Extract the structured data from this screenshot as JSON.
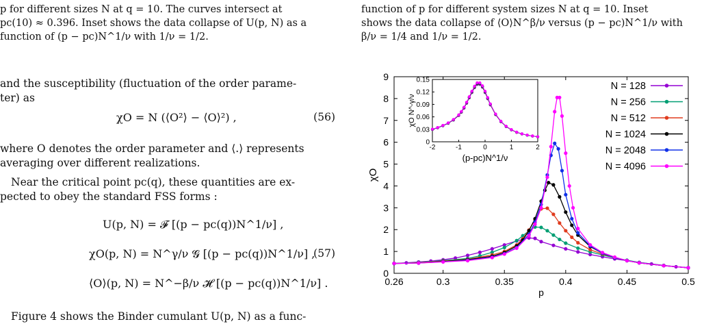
{
  "left_column": {
    "caption_lines": [
      "p for different sizes N at q = 10. The curves intersect at",
      "pc(10) ≈ 0.396. Inset shows the data collapse of U(p, N) as a",
      "function of (p − pc)N^1/ν with 1/ν = 1/2."
    ],
    "para1_lines": [
      "and the susceptibility (fluctuation of the order parame-",
      "ter) as"
    ],
    "eq56": "χO = N (⟨O²⟩ − ⟨O⟩²) ,",
    "eq56_number": "(56)",
    "para2_lines": [
      "where O denotes the order parameter and ⟨.⟩ represents",
      "averaging over different realizations."
    ],
    "para3_lines": [
      "Near the critical point pc(q), these quantities are ex-",
      "pected to obey the standard FSS forms :"
    ],
    "eq57_lines": [
      "U(p, N) = 𝓕 [(p − pc(q))N^1/ν] ,",
      "χO(p, N) = N^γ/ν 𝓖 [(p − pc(q))N^1/ν] ,",
      "⟨O⟩(p, N) = N^−β/ν 𝓗 [(p − pc(q))N^1/ν] ."
    ],
    "eq57_number": "(57)",
    "para4_line": "Figure 4 shows the Binder cumulant U(p, N) as a func-"
  },
  "right_column": {
    "caption_lines": [
      "function of p for different system sizes N at q = 10. Inset",
      "shows the data collapse of ⟨O⟩N^β/ν versus (p − pc)N^1/ν with",
      "β/ν = 1/4 and 1/ν = 1/2."
    ]
  },
  "chart_data": {
    "type": "line",
    "xlabel": "p",
    "ylabel": "χO",
    "xlim": [
      0.26,
      0.5
    ],
    "ylim": [
      0,
      9
    ],
    "xticks": [
      "0.26",
      "0.3",
      "0.35",
      "0.4",
      "0.45",
      "0.5"
    ],
    "yticks": [
      "0",
      "1",
      "2",
      "3",
      "4",
      "5",
      "6",
      "7",
      "8",
      "9"
    ],
    "legend_position": "top-right",
    "series": [
      {
        "name": "N = 128",
        "color": "#9400d3",
        "x": [
          0.26,
          0.27,
          0.28,
          0.29,
          0.3,
          0.31,
          0.32,
          0.33,
          0.34,
          0.35,
          0.36,
          0.37,
          0.375,
          0.38,
          0.39,
          0.4,
          0.41,
          0.42,
          0.43,
          0.44,
          0.45,
          0.46,
          0.47,
          0.48,
          0.49,
          0.5
        ],
        "y": [
          0.45,
          0.48,
          0.52,
          0.56,
          0.62,
          0.7,
          0.82,
          0.96,
          1.12,
          1.3,
          1.48,
          1.62,
          1.6,
          1.45,
          1.28,
          1.12,
          0.98,
          0.86,
          0.76,
          0.66,
          0.58,
          0.5,
          0.43,
          0.36,
          0.3,
          0.26
        ]
      },
      {
        "name": "N = 256",
        "color": "#009e73",
        "x": [
          0.26,
          0.28,
          0.3,
          0.32,
          0.33,
          0.34,
          0.35,
          0.36,
          0.365,
          0.37,
          0.375,
          0.38,
          0.385,
          0.39,
          0.395,
          0.4,
          0.41,
          0.42,
          0.43,
          0.44,
          0.45,
          0.46,
          0.48,
          0.5
        ],
        "y": [
          0.45,
          0.5,
          0.58,
          0.68,
          0.8,
          0.96,
          1.18,
          1.5,
          1.72,
          1.95,
          2.12,
          2.1,
          1.95,
          1.75,
          1.55,
          1.38,
          1.15,
          0.98,
          0.84,
          0.71,
          0.6,
          0.5,
          0.36,
          0.25
        ]
      },
      {
        "name": "N = 512",
        "color": "#e03c1e",
        "x": [
          0.26,
          0.28,
          0.3,
          0.32,
          0.34,
          0.35,
          0.36,
          0.365,
          0.37,
          0.375,
          0.38,
          0.385,
          0.39,
          0.395,
          0.4,
          0.405,
          0.41,
          0.42,
          0.43,
          0.44,
          0.45,
          0.46,
          0.48,
          0.5
        ],
        "y": [
          0.45,
          0.48,
          0.56,
          0.64,
          0.84,
          1.0,
          1.3,
          1.58,
          1.98,
          2.45,
          2.95,
          2.98,
          2.7,
          2.3,
          1.95,
          1.65,
          1.4,
          1.08,
          0.88,
          0.72,
          0.58,
          0.48,
          0.35,
          0.25
        ]
      },
      {
        "name": "N = 1024",
        "color": "#000000",
        "x": [
          0.26,
          0.28,
          0.3,
          0.32,
          0.34,
          0.35,
          0.36,
          0.365,
          0.37,
          0.375,
          0.38,
          0.383,
          0.386,
          0.39,
          0.395,
          0.4,
          0.405,
          0.41,
          0.42,
          0.43,
          0.44,
          0.45,
          0.46,
          0.48,
          0.5
        ],
        "y": [
          0.45,
          0.47,
          0.54,
          0.62,
          0.78,
          0.95,
          1.25,
          1.52,
          1.95,
          2.5,
          3.3,
          3.8,
          4.15,
          4.05,
          3.5,
          2.8,
          2.2,
          1.75,
          1.22,
          0.92,
          0.72,
          0.58,
          0.48,
          0.35,
          0.25
        ]
      },
      {
        "name": "N = 2048",
        "color": "#1030e8",
        "x": [
          0.26,
          0.28,
          0.3,
          0.32,
          0.34,
          0.35,
          0.36,
          0.37,
          0.375,
          0.38,
          0.385,
          0.388,
          0.391,
          0.394,
          0.397,
          0.4,
          0.405,
          0.41,
          0.42,
          0.43,
          0.44,
          0.45,
          0.46,
          0.48,
          0.5
        ],
        "y": [
          0.45,
          0.47,
          0.53,
          0.6,
          0.74,
          0.9,
          1.18,
          1.78,
          2.35,
          3.15,
          4.5,
          5.4,
          5.95,
          5.7,
          4.7,
          3.6,
          2.5,
          1.85,
          1.25,
          0.92,
          0.72,
          0.58,
          0.48,
          0.35,
          0.25
        ]
      },
      {
        "name": "N = 4096",
        "color": "#ff00ff",
        "x": [
          0.26,
          0.28,
          0.3,
          0.32,
          0.34,
          0.35,
          0.36,
          0.37,
          0.375,
          0.38,
          0.385,
          0.388,
          0.391,
          0.393,
          0.395,
          0.397,
          0.4,
          0.403,
          0.406,
          0.41,
          0.42,
          0.43,
          0.44,
          0.45,
          0.46,
          0.48,
          0.5
        ],
        "y": [
          0.45,
          0.47,
          0.52,
          0.58,
          0.72,
          0.88,
          1.15,
          1.72,
          2.25,
          3.0,
          4.4,
          5.8,
          7.4,
          8.05,
          8.05,
          7.2,
          5.5,
          4.0,
          3.0,
          2.05,
          1.3,
          0.95,
          0.74,
          0.58,
          0.48,
          0.35,
          0.25
        ]
      }
    ],
    "inset": {
      "type": "scatter",
      "xlabel": "(p-pc)N^1/ν",
      "ylabel": "χO N^-γ/ν",
      "xlim": [
        -2,
        2
      ],
      "ylim": [
        0,
        0.15
      ],
      "xticks": [
        "-2",
        "-1",
        "0",
        "1",
        "2"
      ],
      "yticks": [
        "0",
        "0.03",
        "0.06",
        "0.09",
        "0.12",
        "0.15"
      ],
      "collapse_x": [
        -2.0,
        -1.8,
        -1.6,
        -1.4,
        -1.2,
        -1.0,
        -0.9,
        -0.8,
        -0.7,
        -0.6,
        -0.5,
        -0.4,
        -0.3,
        -0.2,
        -0.1,
        0.0,
        0.1,
        0.2,
        0.4,
        0.6,
        0.8,
        1.0,
        1.2,
        1.4,
        1.6,
        1.8,
        2.0
      ],
      "collapse_y": [
        0.03,
        0.034,
        0.039,
        0.045,
        0.053,
        0.064,
        0.072,
        0.082,
        0.094,
        0.107,
        0.12,
        0.132,
        0.14,
        0.14,
        0.133,
        0.12,
        0.105,
        0.09,
        0.066,
        0.049,
        0.037,
        0.029,
        0.023,
        0.019,
        0.016,
        0.014,
        0.012
      ]
    }
  }
}
